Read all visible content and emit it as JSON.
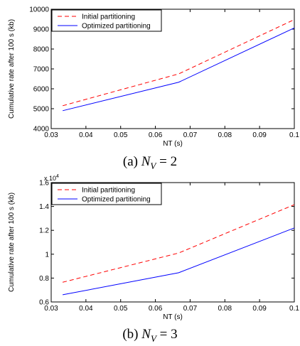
{
  "chart_data": [
    {
      "type": "line",
      "x": [
        0.0333,
        0.0667,
        0.1
      ],
      "series": [
        {
          "name": "Initial partitioning",
          "values": [
            5150,
            6750,
            9480
          ],
          "color": "#ff0000",
          "style": "dashed"
        },
        {
          "name": "Optimized partitioning",
          "values": [
            4900,
            6330,
            9060
          ],
          "color": "#0000ff",
          "style": "solid"
        }
      ],
      "xlabel": "NT (s)",
      "ylabel": "Cumulative rate after 100 s (kb)",
      "xlim": [
        0.03,
        0.1
      ],
      "ylim": [
        4000,
        10000
      ],
      "xticks": [
        0.03,
        0.04,
        0.05,
        0.06,
        0.07,
        0.08,
        0.09,
        0.1
      ],
      "xtick_labels": [
        "0.03",
        "0.04",
        "0.05",
        "0.06",
        "0.07",
        "0.08",
        "0.09",
        "0.1"
      ],
      "yticks": [
        4000,
        5000,
        6000,
        7000,
        8000,
        9000,
        10000
      ],
      "ytick_labels": [
        "4000",
        "5000",
        "6000",
        "7000",
        "8000",
        "9000",
        "10000"
      ],
      "exponent_label": "",
      "legend_position": "top-left",
      "grid": false,
      "caption": {
        "prefix": "(a)",
        "math_var": "N",
        "math_sub": "V",
        "math_rest": " = 2"
      }
    },
    {
      "type": "line",
      "x": [
        0.0333,
        0.0667,
        0.1
      ],
      "series": [
        {
          "name": "Initial partitioning",
          "values": [
            0.765,
            1.01,
            1.415
          ],
          "color": "#ff0000",
          "style": "dashed"
        },
        {
          "name": "Optimized partitioning",
          "values": [
            0.66,
            0.845,
            1.22
          ],
          "color": "#0000ff",
          "style": "solid"
        }
      ],
      "xlabel": "NT (s)",
      "ylabel": "Cumulative rate after 100 s (kb)",
      "xlim": [
        0.03,
        0.1
      ],
      "ylim": [
        0.6,
        1.6
      ],
      "xticks": [
        0.03,
        0.04,
        0.05,
        0.06,
        0.07,
        0.08,
        0.09,
        0.1
      ],
      "xtick_labels": [
        "0.03",
        "0.04",
        "0.05",
        "0.06",
        "0.07",
        "0.08",
        "0.09",
        "0.1"
      ],
      "yticks": [
        0.6,
        0.8,
        1.0,
        1.2,
        1.4,
        1.6
      ],
      "ytick_labels": [
        "0.6",
        "0.8",
        "1",
        "1.2",
        "1.4",
        "1.6"
      ],
      "exponent_label": "x 10^4",
      "legend_position": "top-left",
      "grid": false,
      "caption": {
        "prefix": "(b)",
        "math_var": "N",
        "math_sub": "V",
        "math_rest": " = 3"
      }
    }
  ]
}
